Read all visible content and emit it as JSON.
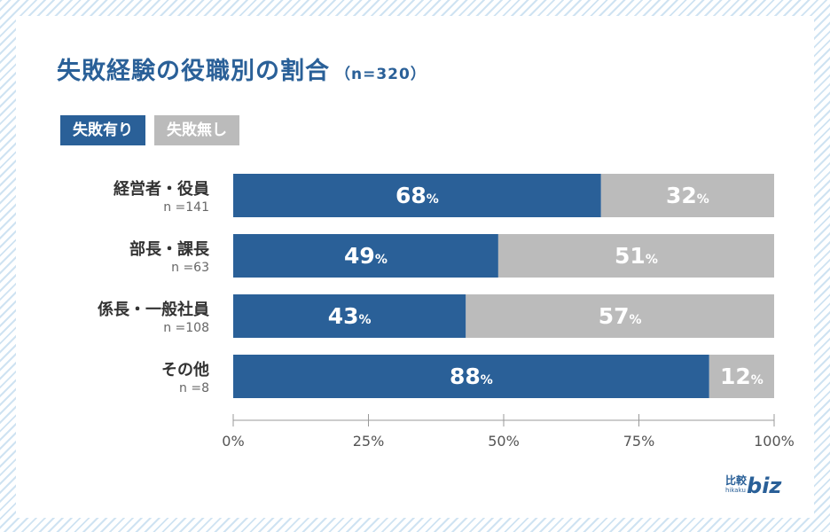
{
  "title": "失敗経験の役職別の割合",
  "title_n": "（n=320）",
  "colors": {
    "primary": "#2a6098",
    "secondary": "#bbbbbb",
    "accent_text": "#ffffff"
  },
  "chart_data": {
    "type": "bar",
    "orientation": "horizontal-stacked-100",
    "title": "失敗経験の役職別の割合",
    "n_total": "（n=320）",
    "categories": [
      "経営者・役員",
      "部長・課長",
      "係長・一般社員",
      "その他"
    ],
    "category_counts": [
      "n =141",
      "n =63",
      "n =108",
      "n =8"
    ],
    "series": [
      {
        "name": "失敗有り",
        "values": [
          68,
          49,
          43,
          88
        ],
        "color": "#2a6098"
      },
      {
        "name": "失敗無し",
        "values": [
          32,
          51,
          57,
          12
        ],
        "color": "#bbbbbb"
      }
    ],
    "unit": "%",
    "xlim": [
      0,
      100
    ],
    "xticks": [
      "0%",
      "25%",
      "50%",
      "75%",
      "100%"
    ],
    "legend_position": "top-left"
  },
  "logo": {
    "kanji": "比較",
    "sub": "hikaku",
    "word": "biz"
  }
}
